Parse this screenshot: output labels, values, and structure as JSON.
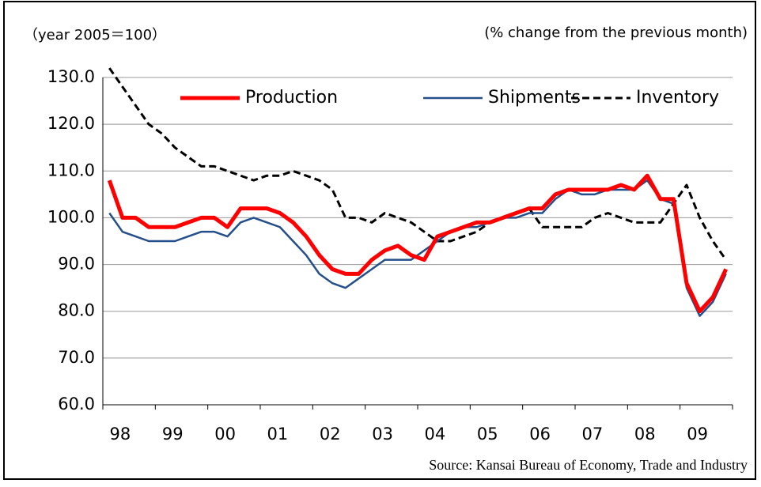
{
  "chart_data": {
    "type": "line",
    "annotations": [
      "（year 2005＝100）",
      "(% change from the previous  month)",
      "Source: Kansai Bureau of Economy, Trade and Industry"
    ],
    "categories": [
      "98",
      null,
      null,
      null,
      "99",
      null,
      null,
      null,
      "00",
      null,
      null,
      null,
      "01",
      null,
      null,
      null,
      "02",
      null,
      null,
      null,
      "03",
      null,
      null,
      null,
      "04",
      null,
      null,
      null,
      "05",
      null,
      null,
      null,
      "06",
      null,
      null,
      null,
      "07",
      null,
      null,
      null,
      "08",
      null,
      null,
      null,
      "09",
      null,
      null,
      null
    ],
    "series": [
      {
        "name": "Production",
        "color": "#ff0000",
        "values": [
          108,
          100,
          100,
          98,
          98,
          98,
          99,
          100,
          100,
          98,
          102,
          102,
          102,
          101,
          99,
          96,
          92,
          89,
          88,
          88,
          91,
          93,
          94,
          92,
          91,
          96,
          97,
          98,
          99,
          99,
          100,
          101,
          102,
          102,
          105,
          106,
          106,
          106,
          106,
          107,
          106,
          109,
          104,
          104,
          86,
          80,
          83,
          89
        ]
      },
      {
        "name": "Shipments",
        "color": "#254f8a",
        "values": [
          101,
          97,
          96,
          95,
          95,
          95,
          96,
          97,
          97,
          96,
          99,
          100,
          99,
          98,
          95,
          92,
          88,
          86,
          85,
          87,
          89,
          91,
          91,
          91,
          93,
          95,
          97,
          98,
          98,
          99,
          100,
          100,
          101,
          101,
          104,
          106,
          105,
          105,
          106,
          106,
          106,
          108,
          104,
          103,
          85,
          79,
          82,
          88
        ]
      },
      {
        "name": "Inventory",
        "color": "#000000",
        "dashed": true,
        "values": [
          132,
          128,
          124,
          120,
          118,
          115,
          113,
          111,
          111,
          110,
          109,
          108,
          109,
          109,
          110,
          109,
          108,
          106,
          100,
          100,
          99,
          101,
          100,
          99,
          97,
          95,
          95,
          96,
          97,
          99,
          100,
          101,
          102,
          98,
          98,
          98,
          98,
          100,
          101,
          100,
          99,
          99,
          99,
          103,
          107,
          100,
          95,
          91
        ]
      }
    ],
    "ylim": [
      60,
      130
    ],
    "yticks": [
      {
        "value": 60,
        "label": "60.0"
      },
      {
        "value": 70,
        "label": "70.0"
      },
      {
        "value": 80,
        "label": "80.0"
      },
      {
        "value": 90,
        "label": "90.0"
      },
      {
        "value": 100,
        "label": "100.0"
      },
      {
        "value": 110,
        "label": "110.0"
      },
      {
        "value": 120,
        "label": "120.0"
      },
      {
        "value": 130,
        "label": "130.0"
      }
    ],
    "grid": true
  }
}
